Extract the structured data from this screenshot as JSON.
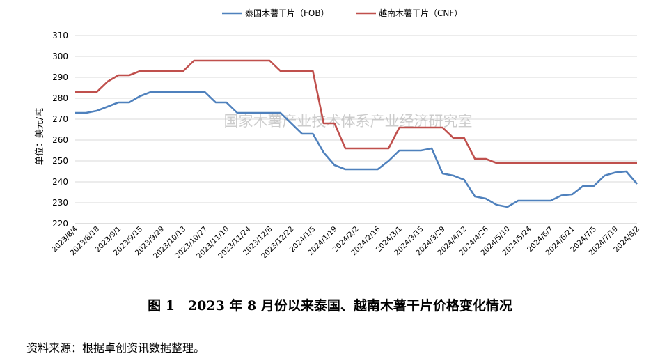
{
  "chart_data": {
    "type": "line",
    "title": "",
    "ylabel": "单位：美元/吨",
    "ylim": [
      220,
      310
    ],
    "yticks": [
      220,
      230,
      240,
      250,
      260,
      270,
      280,
      290,
      300,
      310
    ],
    "grid": true,
    "legend": "top-center",
    "watermark": "国家木薯产业技术体系产业经济研究室",
    "x": [
      "2023/8/4",
      "2023/8/11",
      "2023/8/18",
      "2023/8/25",
      "2023/9/1",
      "2023/9/8",
      "2023/9/15",
      "2023/9/22",
      "2023/9/29",
      "2023/10/6",
      "2023/10/13",
      "2023/10/20",
      "2023/10/27",
      "2023/11/3",
      "2023/11/10",
      "2023/11/17",
      "2023/11/24",
      "2023/12/1",
      "2023/12/8",
      "2023/12/15",
      "2023/12/22",
      "2023/12/29",
      "2024/1/5",
      "2024/1/12",
      "2024/1/19",
      "2024/1/26",
      "2024/2/2",
      "2024/2/9",
      "2024/2/16",
      "2024/2/23",
      "2024/3/1",
      "2024/3/8",
      "2024/3/15",
      "2024/3/22",
      "2024/3/29",
      "2024/4/5",
      "2024/4/12",
      "2024/4/19",
      "2024/4/26",
      "2024/5/3",
      "2024/5/10",
      "2024/5/17",
      "2024/5/24",
      "2024/5/31",
      "2024/6/7",
      "2024/6/14",
      "2024/6/21",
      "2024/6/28",
      "2024/7/5",
      "2024/7/12",
      "2024/7/19",
      "2024/7/26",
      "2024/8/2"
    ],
    "xticks": [
      "2023/8/4",
      "2023/8/18",
      "2023/9/1",
      "2023/9/15",
      "2023/9/29",
      "2023/10/13",
      "2023/10/27",
      "2023/11/10",
      "2023/11/24",
      "2023/12/8",
      "2023/12/22",
      "2024/1/5",
      "2024/1/19",
      "2024/2/2",
      "2024/2/16",
      "2024/3/1",
      "2024/3/15",
      "2024/3/29",
      "2024/4/12",
      "2024/4/26",
      "2024/5/10",
      "2024/5/24",
      "2024/6/7",
      "2024/6/21",
      "2024/7/5",
      "2024/7/19",
      "2024/8/2"
    ],
    "series": [
      {
        "name": "泰国木薯干片（FOB）",
        "color": "#4f81bd",
        "values": [
          273,
          273,
          274,
          276,
          278,
          278,
          281,
          283,
          283,
          283,
          283,
          283,
          283,
          278,
          278,
          273,
          273,
          273,
          273,
          273,
          268,
          263,
          263,
          254,
          248,
          246,
          246,
          246,
          246,
          250,
          255,
          255,
          255,
          256,
          244,
          243,
          241,
          233,
          232,
          229,
          228,
          231,
          231,
          231,
          231,
          233.5,
          234,
          238,
          238,
          243,
          244.5,
          245,
          239
        ]
      },
      {
        "name": "越南木薯干片（CNF）",
        "color": "#c0504d",
        "values": [
          283,
          283,
          283,
          288,
          291,
          291,
          293,
          293,
          293,
          293,
          293,
          298,
          298,
          298,
          298,
          298,
          298,
          298,
          298,
          293,
          293,
          293,
          293,
          268,
          268,
          256,
          256,
          256,
          256,
          256,
          266,
          266,
          266,
          266,
          266,
          261,
          261,
          251,
          251,
          249,
          249,
          249,
          249,
          249,
          249,
          249,
          249,
          249,
          249,
          249,
          249,
          249,
          249
        ]
      }
    ]
  },
  "caption": "图 1　2023 年 8 月份以来泰国、越南木薯干片价格变化情况",
  "source": "资料来源：根据卓创资讯数据整理。"
}
